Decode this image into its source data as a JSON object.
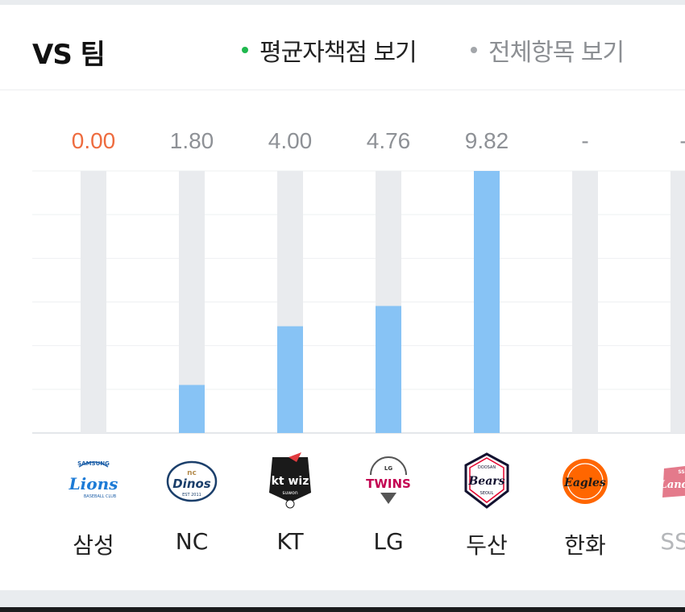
{
  "header": {
    "title": "VS 팀",
    "options": [
      {
        "label": "평균자책점 보기",
        "active": true,
        "dot_color": "#1fb84e"
      },
      {
        "label": "전체항목 보기",
        "active": false,
        "dot_color": "#a3a6aa"
      }
    ]
  },
  "chart_data": {
    "type": "bar",
    "categories": [
      "삼성",
      "NC",
      "KT",
      "LG",
      "두산",
      "한화",
      "SSG"
    ],
    "value_labels": [
      "0.00",
      "1.80",
      "4.00",
      "4.76",
      "9.82",
      "-",
      "-"
    ],
    "values": [
      0.0,
      1.8,
      4.0,
      4.76,
      9.82,
      null,
      null
    ],
    "ylim": [
      0,
      9.82
    ],
    "grid": true,
    "label_colors": {
      "highlight": "#ee6c3f",
      "normal": "#8e9196"
    },
    "bar_color": "#87c3f5",
    "track_color": "#e9ebee"
  },
  "teams": [
    {
      "name": "삼성",
      "logo": "samsung-lions-logo"
    },
    {
      "name": "NC",
      "logo": "nc-dinos-logo"
    },
    {
      "name": "KT",
      "logo": "kt-wiz-logo"
    },
    {
      "name": "LG",
      "logo": "lg-twins-logo"
    },
    {
      "name": "두산",
      "logo": "doosan-bears-logo"
    },
    {
      "name": "한화",
      "logo": "hanwha-eagles-logo"
    },
    {
      "name": "SSG",
      "logo": "ssg-landers-logo"
    }
  ]
}
